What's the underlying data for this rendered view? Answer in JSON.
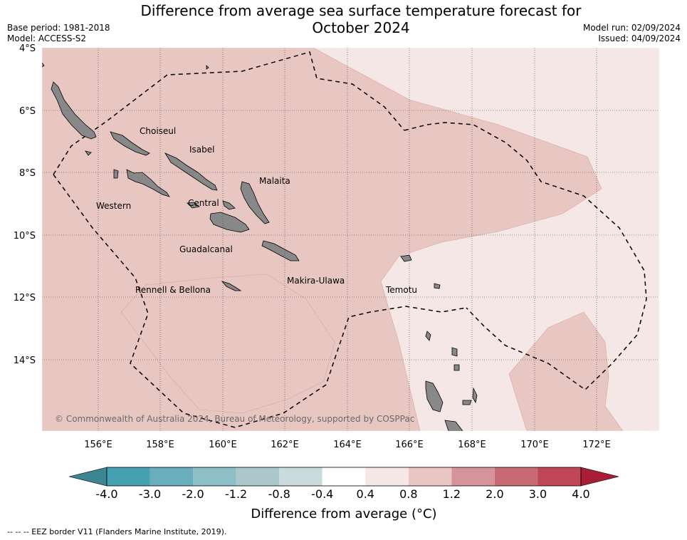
{
  "header": {
    "title_line1": "Difference from average sea surface temperature forecast for",
    "title_line2": "October 2024",
    "base_period": "Base period: 1981-2018",
    "model": "Model: ACCESS-S2",
    "model_run": "Model run: 02/09/2024",
    "issued": "Issued: 04/09/2024"
  },
  "map": {
    "lat_labels": [
      "4°S",
      "6°S",
      "8°S",
      "10°S",
      "12°S",
      "14°S"
    ],
    "lon_labels": [
      "156°E",
      "158°E",
      "160°E",
      "162°E",
      "164°E",
      "166°E",
      "168°E",
      "170°E",
      "172°E"
    ],
    "places": [
      "Choiseul",
      "Isabel",
      "Malaita",
      "Western",
      "Central",
      "Guadalcanal",
      "Makira-Ulawa",
      "Rennell & Bellona",
      "Temotu"
    ],
    "copyright": "© Commonwealth of Australia 2024, Bureau of Meteorology, supported by COSPPac",
    "colors": {
      "warm_0.4_0.8": "#f5e7e5",
      "warm_0.8_1.2": "#e8c6c2",
      "land": "#888888",
      "border": "#000000"
    }
  },
  "colorbar": {
    "title": "Difference from average (°C)",
    "ticks": [
      "-4.0",
      "-3.0",
      "-2.0",
      "-1.2",
      "-0.8",
      "-0.4",
      "0.4",
      "0.8",
      "1.2",
      "2.0",
      "3.0",
      "4.0"
    ],
    "colors": [
      "#3c8592",
      "#45a0b2",
      "#6aaebd",
      "#8dbdc6",
      "#aac8cc",
      "#c9dbdd",
      "#ffffff",
      "#f5e7e5",
      "#e8c6c2",
      "#d7939a",
      "#c86a74",
      "#bf4755",
      "#a81e36"
    ]
  },
  "footnote": "--  --  -- EEZ border V11 (Flanders Marine Institute, 2019)."
}
